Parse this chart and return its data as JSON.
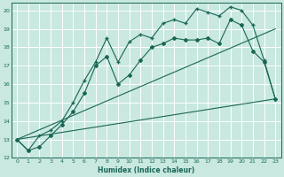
{
  "xlabel": "Humidex (Indice chaleur)",
  "xlim": [
    -0.5,
    23.5
  ],
  "ylim": [
    12,
    20.4
  ],
  "yticks": [
    12,
    13,
    14,
    15,
    16,
    17,
    18,
    19,
    20
  ],
  "xticks": [
    0,
    1,
    2,
    3,
    4,
    5,
    6,
    7,
    8,
    9,
    10,
    11,
    12,
    13,
    14,
    15,
    16,
    17,
    18,
    19,
    20,
    21,
    22,
    23
  ],
  "bg_color": "#c8e8e0",
  "grid_color": "#ffffff",
  "line_color": "#1a6655",
  "series": {
    "jagged1": {
      "x": [
        0,
        1,
        2,
        3,
        4,
        5,
        6,
        7,
        8,
        9,
        10,
        11,
        12,
        13,
        14,
        15,
        16,
        17,
        18,
        19,
        20,
        21,
        22,
        23
      ],
      "y": [
        13.0,
        12.4,
        12.6,
        13.2,
        13.8,
        14.5,
        15.5,
        17.0,
        17.5,
        16.0,
        16.5,
        17.3,
        18.0,
        18.2,
        18.5,
        18.4,
        18.4,
        18.5,
        18.2,
        19.5,
        19.2,
        17.8,
        17.2,
        15.2
      ],
      "marker": "D",
      "markersize": 2.0,
      "linewidth": 0.8
    },
    "jagged2": {
      "x": [
        0,
        1,
        2,
        3,
        4,
        5,
        6,
        7,
        8,
        9,
        10,
        11,
        12,
        13,
        14,
        15,
        16,
        17,
        18,
        19,
        20,
        21,
        22,
        23
      ],
      "y": [
        13.0,
        12.4,
        13.2,
        13.5,
        14.0,
        15.0,
        16.2,
        17.2,
        18.5,
        17.2,
        18.3,
        18.7,
        18.5,
        19.3,
        19.5,
        19.3,
        20.1,
        19.9,
        19.7,
        20.2,
        20.0,
        19.2,
        17.3,
        15.2
      ],
      "marker": "+",
      "markersize": 3.5,
      "linewidth": 0.8
    },
    "linear1": {
      "x": [
        0,
        23
      ],
      "y": [
        13.0,
        19.0
      ],
      "linewidth": 0.8
    },
    "linear2": {
      "x": [
        0,
        23
      ],
      "y": [
        13.0,
        15.2
      ],
      "linewidth": 0.8
    }
  }
}
